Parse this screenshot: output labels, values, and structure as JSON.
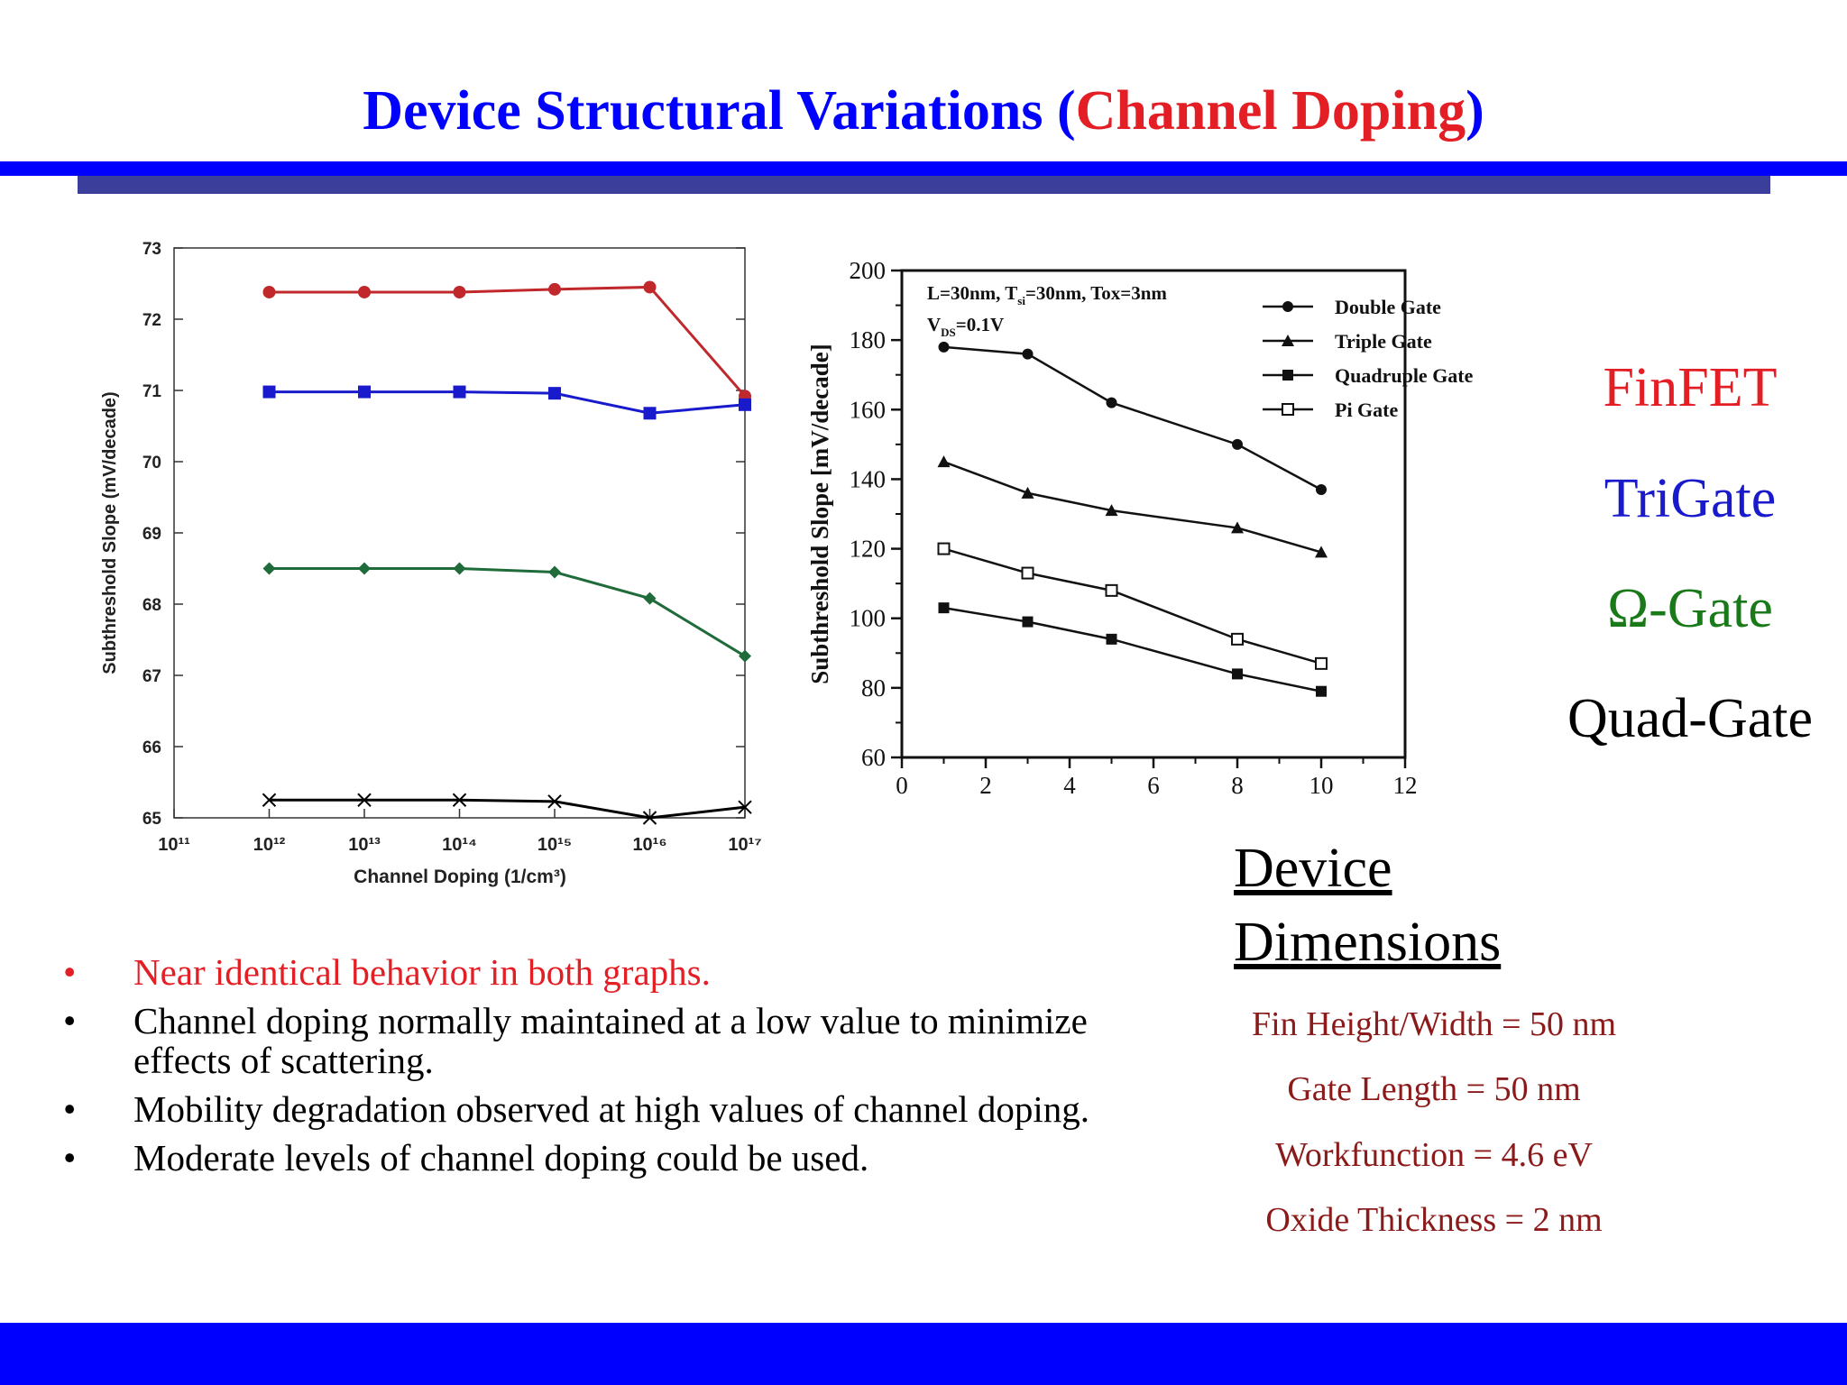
{
  "slide": {
    "title_main": "Device Structural Variations (",
    "title_accent": "Channel Doping",
    "title_close": ")"
  },
  "colors": {
    "title_blue": "#0000ff",
    "title_accent": "#e31e24",
    "finfet": "#e31e24",
    "trigate": "#1a1acd",
    "omega": "#1a7a1a",
    "quad": "#000000",
    "dimensions": "#8b1a1a"
  },
  "legend_labels": [
    {
      "label": "FinFET",
      "color": "#e31e24"
    },
    {
      "label": "TriGate",
      "color": "#1a1acd"
    },
    {
      "label": "Ω-Gate",
      "color": "#1a7a1a"
    },
    {
      "label": "Quad-Gate",
      "color": "#000000"
    }
  ],
  "device_dimensions": {
    "heading_line1": "Device",
    "heading_line2": "Dimensions",
    "items": [
      "Fin Height/Width = 50 nm",
      "Gate Length = 50 nm",
      "Workfunction = 4.6 eV",
      "Oxide Thickness = 2 nm"
    ]
  },
  "bullets": [
    {
      "text": "Near  identical behavior in both graphs.",
      "color": "#e31e24"
    },
    {
      "text": "Channel doping normally maintained at a low value to minimize effects of scattering.",
      "color": "#000000"
    },
    {
      "text": "Mobility degradation observed at high values of channel doping.",
      "color": "#000000"
    },
    {
      "text": "Moderate levels of channel doping could be used.",
      "color": "#000000"
    }
  ],
  "chart_data": [
    {
      "type": "line",
      "xscale": "log",
      "xlabel": "Channel Doping (1/cm³)",
      "ylabel": "Subthreshold Slope (mV/decade)",
      "x_ticks": [
        "10¹¹",
        "10¹²",
        "10¹³",
        "10¹⁴",
        "10¹⁵",
        "10¹⁶",
        "10¹⁷"
      ],
      "x_exponents": [
        11,
        12,
        13,
        14,
        15,
        16,
        17
      ],
      "xlim": [
        11,
        17
      ],
      "ylim": [
        65,
        73
      ],
      "y_ticks": [
        65,
        66,
        67,
        68,
        69,
        70,
        71,
        72,
        73
      ],
      "x": [
        12,
        13,
        14,
        15,
        16,
        17
      ],
      "series": [
        {
          "color": "#c0282c",
          "marker": "circle",
          "values": [
            72.38,
            72.38,
            72.38,
            72.42,
            72.45,
            70.92
          ]
        },
        {
          "color": "#1a1acd",
          "marker": "square",
          "values": [
            70.98,
            70.98,
            70.98,
            70.96,
            70.68,
            70.8
          ]
        },
        {
          "color": "#1f6b3a",
          "marker": "diamond",
          "values": [
            68.5,
            68.5,
            68.5,
            68.45,
            68.08,
            67.27
          ]
        },
        {
          "color": "#000000",
          "marker": "x",
          "values": [
            65.25,
            65.25,
            65.25,
            65.23,
            65.0,
            65.15
          ]
        }
      ]
    },
    {
      "type": "line",
      "ylabel": "Subthreshold  Slope [mV/decade]",
      "annotation_line1": "L=30nm, T",
      "annotation_sub1": "si",
      "annotation_rest1": "=30nm, Tox=3nm",
      "annotation_line2": "V",
      "annotation_sub2": "DS",
      "annotation_rest2": "=0.1V",
      "xlim": [
        0,
        12
      ],
      "ylim": [
        60,
        200
      ],
      "x_ticks": [
        0,
        2,
        4,
        6,
        8,
        10,
        12
      ],
      "y_ticks": [
        60,
        80,
        100,
        120,
        140,
        160,
        180,
        200
      ],
      "x": [
        1,
        3,
        5,
        8,
        10
      ],
      "legend_position": "top-right",
      "series": [
        {
          "name": "Double Gate",
          "marker": "circle-filled",
          "values": [
            178,
            176,
            162,
            150,
            137
          ]
        },
        {
          "name": "Triple Gate",
          "marker": "triangle-filled",
          "values": [
            145,
            136,
            131,
            126,
            119
          ]
        },
        {
          "name": "Quadruple Gate",
          "marker": "square-filled",
          "values": [
            103,
            99,
            94,
            84,
            79
          ]
        },
        {
          "name": "Pi Gate",
          "marker": "square-open",
          "values": [
            120,
            113,
            108,
            94,
            87
          ]
        }
      ]
    }
  ]
}
